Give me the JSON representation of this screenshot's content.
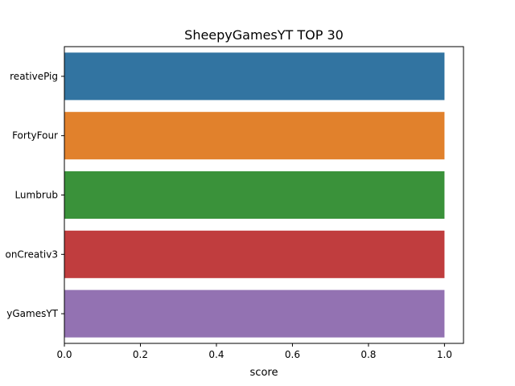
{
  "chart_data": {
    "type": "bar",
    "orientation": "horizontal",
    "title": "SheepyGamesYT TOP 30",
    "xlabel": "score",
    "ylabel": "",
    "xlim": [
      0,
      1.05
    ],
    "xticks": [
      0.0,
      0.2,
      0.4,
      0.6,
      0.8,
      1.0
    ],
    "xtick_labels": [
      "0.0",
      "0.2",
      "0.4",
      "0.6",
      "0.8",
      "1.0"
    ],
    "categories": [
      "CreativePig",
      "FortyFour",
      "Lumbrub",
      "onCreativ3",
      "SheepyGamesYT"
    ],
    "category_labels_shown": [
      "reativePig",
      "FortyFour",
      "Lumbrub",
      "onCreativ3",
      "yGamesYT"
    ],
    "values": [
      1.0,
      1.0,
      1.0,
      1.0,
      1.0
    ],
    "colors": [
      "#3274a1",
      "#e1812c",
      "#3a923a",
      "#c03d3e",
      "#9372b2"
    ],
    "grid": false,
    "legend": "none"
  }
}
